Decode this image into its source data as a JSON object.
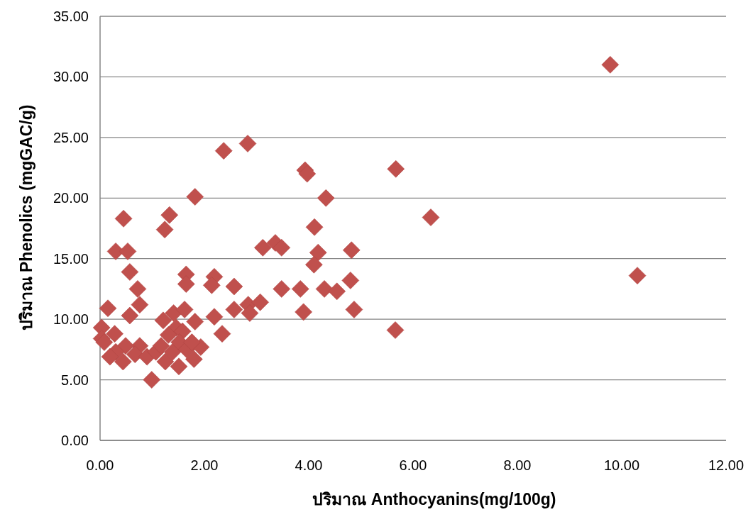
{
  "chart_data": {
    "type": "scatter",
    "xlabel": "ปริมาณ Anthocyanins(mg/100g)",
    "ylabel": "ปริมาณ Phenolics (mgGAC/g)",
    "marker": "diamond",
    "grid": "y",
    "xlim": [
      0,
      12
    ],
    "ylim": [
      0,
      35
    ],
    "xticks": [
      {
        "value": 0,
        "label": "0.00"
      },
      {
        "value": 2,
        "label": "2.00"
      },
      {
        "value": 4,
        "label": "4.00"
      },
      {
        "value": 6,
        "label": "6.00"
      },
      {
        "value": 8,
        "label": "8.00"
      },
      {
        "value": 10,
        "label": "10.00"
      },
      {
        "value": 12,
        "label": "12.00"
      }
    ],
    "yticks": [
      {
        "value": 0,
        "label": "0.00"
      },
      {
        "value": 5,
        "label": "5.00"
      },
      {
        "value": 10,
        "label": "10.00"
      },
      {
        "value": 15,
        "label": "15.00"
      },
      {
        "value": 20,
        "label": "20.00"
      },
      {
        "value": 25,
        "label": "25.00"
      },
      {
        "value": 30,
        "label": "30.00"
      },
      {
        "value": 35,
        "label": "35.00"
      }
    ],
    "series": [
      {
        "color": "#c0504d",
        "x": [
          9.78,
          10.3,
          6.34,
          5.67,
          5.66,
          4.82,
          4.8,
          4.87,
          4.33,
          4.11,
          4.18,
          4.1,
          3.93,
          3.97,
          3.12,
          3.36,
          3.48,
          2.57,
          3.48,
          3.84,
          4.3,
          4.54,
          2.57,
          2.84,
          2.87,
          3.07,
          3.9,
          2.37,
          2.83,
          1.82,
          1.33,
          1.24,
          0.3,
          0.53,
          0.57,
          0.72,
          0.76,
          0.57,
          0.15,
          1.65,
          1.65,
          2.19,
          2.14,
          2.19,
          2.34,
          0.99,
          0.03,
          0.03,
          0.28,
          1.21,
          1.41,
          1.62,
          1.82,
          1.46,
          1.58,
          1.31,
          0.76,
          0.49,
          0.3,
          0.19,
          0.44,
          0.67,
          0.9,
          1.07,
          1.17,
          1.25,
          1.39,
          1.52,
          1.51,
          1.66,
          1.8,
          1.93,
          1.76,
          0.08,
          0.45
        ],
        "values": [
          31.0,
          13.6,
          18.4,
          22.4,
          9.1,
          15.7,
          13.2,
          10.8,
          20.0,
          17.6,
          15.5,
          14.5,
          22.3,
          22.0,
          15.9,
          16.3,
          15.9,
          12.7,
          12.5,
          12.5,
          12.5,
          12.3,
          10.8,
          11.2,
          10.5,
          11.4,
          10.6,
          23.9,
          24.5,
          20.1,
          18.6,
          17.4,
          15.6,
          15.6,
          13.9,
          12.5,
          11.2,
          10.3,
          10.9,
          13.7,
          12.9,
          13.5,
          12.8,
          10.2,
          8.8,
          5.0,
          9.3,
          8.4,
          8.8,
          9.9,
          10.5,
          10.8,
          9.8,
          9.3,
          9.0,
          8.7,
          7.8,
          7.8,
          7.3,
          6.9,
          6.5,
          7.1,
          6.9,
          7.3,
          7.8,
          6.5,
          7.3,
          8.1,
          6.1,
          7.5,
          6.7,
          7.7,
          8.1,
          8.1,
          18.3
        ]
      }
    ]
  }
}
